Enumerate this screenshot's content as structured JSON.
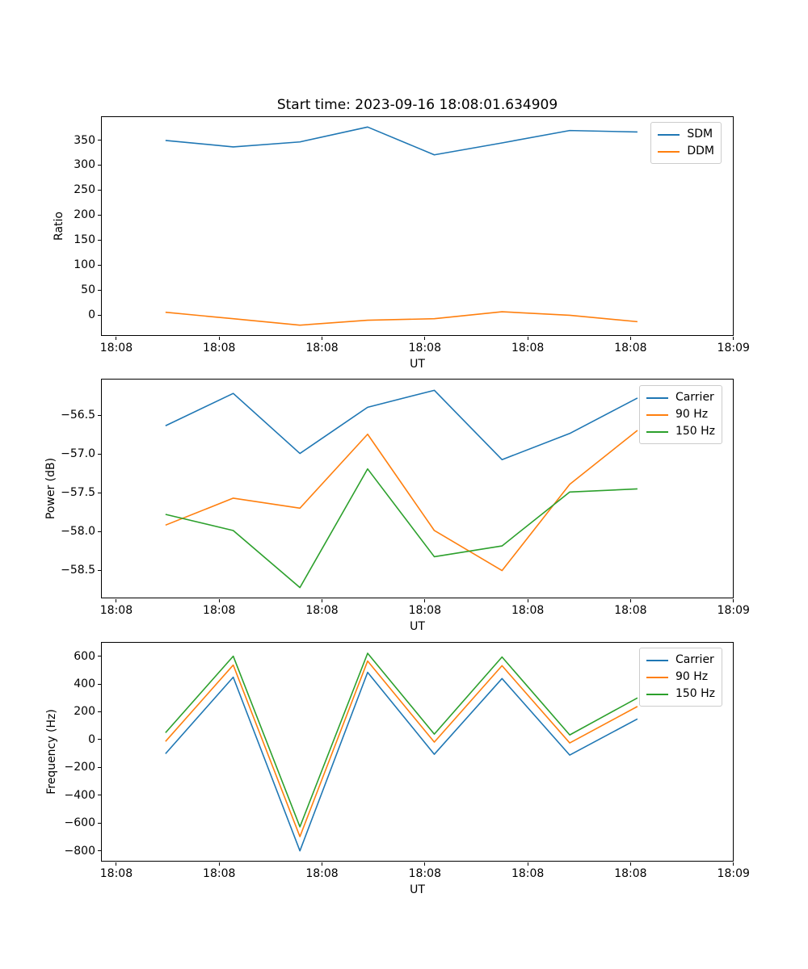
{
  "title": "Start time: 2023-09-16 18:08:01.634909",
  "colors": {
    "blue": "#1f77b4",
    "orange": "#ff7f0e",
    "green": "#2ca02c",
    "axis": "#000000",
    "legend_border": "#cccccc",
    "background": "#ffffff"
  },
  "x_axis": {
    "label": "UT",
    "xlim_seconds": [
      -1.41,
      60.1
    ],
    "ticks": [
      {
        "sec": 0,
        "label": "18:08"
      },
      {
        "sec": 10,
        "label": "18:08"
      },
      {
        "sec": 20,
        "label": "18:08"
      },
      {
        "sec": 30,
        "label": "18:08"
      },
      {
        "sec": 40,
        "label": "18:08"
      },
      {
        "sec": 50,
        "label": "18:08"
      },
      {
        "sec": 60,
        "label": "18:09"
      }
    ],
    "points_seconds": [
      4.8,
      11.4,
      17.9,
      24.5,
      31.0,
      37.6,
      44.2,
      50.8
    ]
  },
  "chart_data": [
    {
      "type": "line",
      "name": "ratio",
      "title": "Start time: 2023-09-16 18:08:01.634909",
      "xlabel": "UT",
      "ylabel": "Ratio",
      "ylim": [
        -43,
        396
      ],
      "grid": false,
      "legend_position": "upper right",
      "yticks": [
        {
          "v": 350,
          "label": "350"
        },
        {
          "v": 300,
          "label": "300"
        },
        {
          "v": 250,
          "label": "250"
        },
        {
          "v": 200,
          "label": "200"
        },
        {
          "v": 150,
          "label": "150"
        },
        {
          "v": 100,
          "label": "100"
        },
        {
          "v": 50,
          "label": "50"
        },
        {
          "v": 0,
          "label": "0"
        }
      ],
      "series": [
        {
          "name": "SDM",
          "color": "#1f77b4",
          "values": [
            349,
            336,
            346,
            376,
            320,
            344,
            369,
            366
          ]
        },
        {
          "name": "DDM",
          "color": "#ff7f0e",
          "values": [
            3,
            -10,
            -23,
            -13,
            -10,
            4,
            -3,
            -16
          ]
        }
      ]
    },
    {
      "type": "line",
      "name": "power",
      "title": "",
      "xlabel": "UT",
      "ylabel": "Power (dB)",
      "ylim": [
        -58.87,
        -56.04
      ],
      "grid": false,
      "legend_position": "upper right",
      "yticks": [
        {
          "v": -56.5,
          "label": "−56.5"
        },
        {
          "v": -57.0,
          "label": "−57.0"
        },
        {
          "v": -57.5,
          "label": "−57.5"
        },
        {
          "v": -58.0,
          "label": "−58.0"
        },
        {
          "v": -58.5,
          "label": "−58.5"
        }
      ],
      "series": [
        {
          "name": "Carrier",
          "color": "#1f77b4",
          "values": [
            -56.64,
            -56.22,
            -57.0,
            -56.4,
            -56.18,
            -57.08,
            -56.74,
            -56.28
          ]
        },
        {
          "name": "90 Hz",
          "color": "#ff7f0e",
          "values": [
            -57.93,
            -57.58,
            -57.71,
            -56.75,
            -58.0,
            -58.52,
            -57.4,
            -56.7
          ]
        },
        {
          "name": "150 Hz",
          "color": "#2ca02c",
          "values": [
            -57.79,
            -58.0,
            -58.74,
            -57.2,
            -58.34,
            -58.2,
            -57.5,
            -57.46
          ]
        }
      ]
    },
    {
      "type": "line",
      "name": "frequency",
      "title": "",
      "xlabel": "UT",
      "ylabel": "Frequency (Hz)",
      "ylim": [
        -882,
        696
      ],
      "grid": false,
      "legend_position": "upper right",
      "yticks": [
        {
          "v": 600,
          "label": "600"
        },
        {
          "v": 400,
          "label": "400"
        },
        {
          "v": 200,
          "label": "200"
        },
        {
          "v": 0,
          "label": "0"
        },
        {
          "v": -200,
          "label": "−200"
        },
        {
          "v": -400,
          "label": "−400"
        },
        {
          "v": -600,
          "label": "−600"
        },
        {
          "v": -800,
          "label": "−800"
        }
      ],
      "series": [
        {
          "name": "Carrier",
          "color": "#1f77b4",
          "values": [
            -107,
            447,
            -810,
            482,
            -111,
            437,
            -117,
            145
          ]
        },
        {
          "name": "90 Hz",
          "color": "#ff7f0e",
          "values": [
            -18,
            535,
            -707,
            564,
            -23,
            530,
            -29,
            235
          ]
        },
        {
          "name": "150 Hz",
          "color": "#2ca02c",
          "values": [
            45,
            599,
            -636,
            620,
            35,
            593,
            29,
            297
          ]
        }
      ]
    }
  ]
}
